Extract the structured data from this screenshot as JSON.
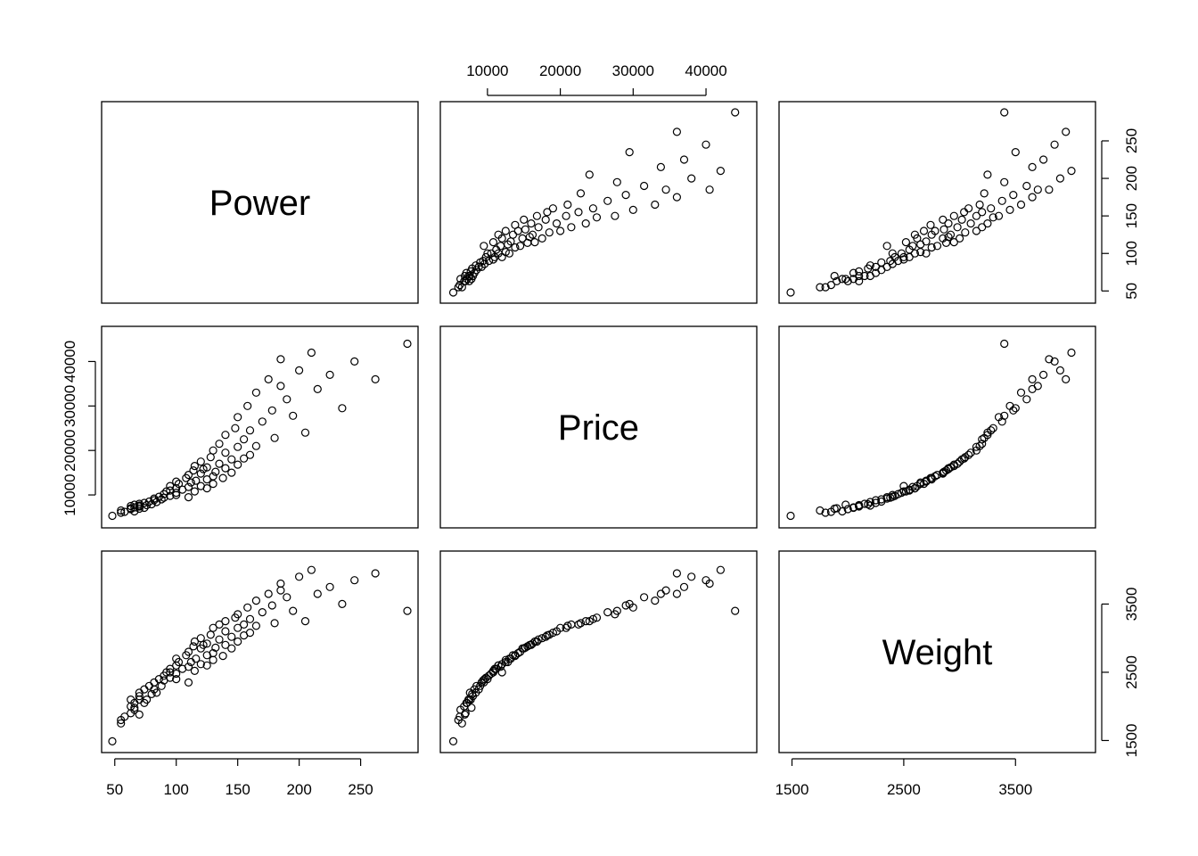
{
  "chart_data": {
    "type": "scatter",
    "subtype": "scatterplot-matrix",
    "variables": [
      "Power",
      "Price",
      "Weight"
    ],
    "axes": {
      "Power": {
        "range": [
          48,
          288
        ],
        "ticks": [
          "50",
          "100",
          "150",
          "200",
          "250"
        ],
        "tick_values": [
          50,
          100,
          150,
          200,
          250
        ]
      },
      "Price": {
        "range": [
          5000,
          45500
        ],
        "ticks": [
          "10000",
          "20000",
          "30000",
          "40000"
        ],
        "tick_values": [
          10000,
          20000,
          30000,
          40000
        ]
      },
      "Weight": {
        "range": [
          1480,
          4120
        ],
        "ticks": [
          "1500",
          "2500",
          "3500"
        ],
        "tick_values": [
          1500,
          2500,
          3500
        ]
      }
    },
    "observations": [
      {
        "power": 48,
        "price": 5300,
        "weight": 1488
      },
      {
        "power": 55,
        "price": 6000,
        "weight": 1800
      },
      {
        "power": 55,
        "price": 6500,
        "weight": 1750
      },
      {
        "power": 58,
        "price": 6200,
        "weight": 1850
      },
      {
        "power": 63,
        "price": 7000,
        "weight": 1900
      },
      {
        "power": 63,
        "price": 6800,
        "weight": 2000
      },
      {
        "power": 63,
        "price": 7500,
        "weight": 2100
      },
      {
        "power": 66,
        "price": 6300,
        "weight": 1950
      },
      {
        "power": 66,
        "price": 7200,
        "weight": 2050
      },
      {
        "power": 66,
        "price": 7800,
        "weight": 1980
      },
      {
        "power": 70,
        "price": 7400,
        "weight": 2100
      },
      {
        "power": 70,
        "price": 8000,
        "weight": 2150
      },
      {
        "power": 70,
        "price": 6900,
        "weight": 1880
      },
      {
        "power": 70,
        "price": 7600,
        "weight": 2200
      },
      {
        "power": 74,
        "price": 7100,
        "weight": 2050
      },
      {
        "power": 74,
        "price": 8200,
        "weight": 2250
      },
      {
        "power": 76,
        "price": 7700,
        "weight": 2100
      },
      {
        "power": 78,
        "price": 8500,
        "weight": 2300
      },
      {
        "power": 80,
        "price": 7900,
        "weight": 2180
      },
      {
        "power": 82,
        "price": 8800,
        "weight": 2250
      },
      {
        "power": 82,
        "price": 9200,
        "weight": 2350
      },
      {
        "power": 84,
        "price": 8400,
        "weight": 2200
      },
      {
        "power": 86,
        "price": 9600,
        "weight": 2400
      },
      {
        "power": 88,
        "price": 9000,
        "weight": 2300
      },
      {
        "power": 90,
        "price": 10200,
        "weight": 2450
      },
      {
        "power": 90,
        "price": 9400,
        "weight": 2380
      },
      {
        "power": 92,
        "price": 10800,
        "weight": 2500
      },
      {
        "power": 95,
        "price": 9800,
        "weight": 2420
      },
      {
        "power": 95,
        "price": 11000,
        "weight": 2550
      },
      {
        "power": 95,
        "price": 12000,
        "weight": 2500
      },
      {
        "power": 100,
        "price": 10500,
        "weight": 2480
      },
      {
        "power": 100,
        "price": 11500,
        "weight": 2600
      },
      {
        "power": 100,
        "price": 13000,
        "weight": 2700
      },
      {
        "power": 100,
        "price": 10000,
        "weight": 2400
      },
      {
        "power": 102,
        "price": 12500,
        "weight": 2650
      },
      {
        "power": 105,
        "price": 11200,
        "weight": 2550
      },
      {
        "power": 108,
        "price": 13800,
        "weight": 2750
      },
      {
        "power": 110,
        "price": 11800,
        "weight": 2580
      },
      {
        "power": 110,
        "price": 14500,
        "weight": 2800
      },
      {
        "power": 110,
        "price": 9500,
        "weight": 2350
      },
      {
        "power": 112,
        "price": 12800,
        "weight": 2650
      },
      {
        "power": 114,
        "price": 15500,
        "weight": 2880
      },
      {
        "power": 115,
        "price": 10800,
        "weight": 2520
      },
      {
        "power": 115,
        "price": 16500,
        "weight": 2950
      },
      {
        "power": 116,
        "price": 13200,
        "weight": 2700
      },
      {
        "power": 120,
        "price": 12000,
        "weight": 2620
      },
      {
        "power": 120,
        "price": 14800,
        "weight": 2850
      },
      {
        "power": 120,
        "price": 17500,
        "weight": 3000
      },
      {
        "power": 122,
        "price": 15800,
        "weight": 2900
      },
      {
        "power": 125,
        "price": 11500,
        "weight": 2600
      },
      {
        "power": 125,
        "price": 13500,
        "weight": 2750
      },
      {
        "power": 125,
        "price": 16200,
        "weight": 2920
      },
      {
        "power": 128,
        "price": 18500,
        "weight": 3050
      },
      {
        "power": 130,
        "price": 14200,
        "weight": 2780
      },
      {
        "power": 130,
        "price": 20000,
        "weight": 3150
      },
      {
        "power": 130,
        "price": 12500,
        "weight": 2680
      },
      {
        "power": 132,
        "price": 15200,
        "weight": 2860
      },
      {
        "power": 135,
        "price": 17000,
        "weight": 2980
      },
      {
        "power": 135,
        "price": 21500,
        "weight": 3200
      },
      {
        "power": 138,
        "price": 13800,
        "weight": 2740
      },
      {
        "power": 140,
        "price": 16000,
        "weight": 2900
      },
      {
        "power": 140,
        "price": 19500,
        "weight": 3100
      },
      {
        "power": 140,
        "price": 23500,
        "weight": 3250
      },
      {
        "power": 145,
        "price": 15000,
        "weight": 2850
      },
      {
        "power": 145,
        "price": 18000,
        "weight": 3020
      },
      {
        "power": 148,
        "price": 25000,
        "weight": 3300
      },
      {
        "power": 150,
        "price": 16800,
        "weight": 2950
      },
      {
        "power": 150,
        "price": 20800,
        "weight": 3150
      },
      {
        "power": 150,
        "price": 27500,
        "weight": 3350
      },
      {
        "power": 155,
        "price": 18200,
        "weight": 3040
      },
      {
        "power": 155,
        "price": 22500,
        "weight": 3200
      },
      {
        "power": 158,
        "price": 30000,
        "weight": 3450
      },
      {
        "power": 160,
        "price": 19000,
        "weight": 3080
      },
      {
        "power": 160,
        "price": 24500,
        "weight": 3280
      },
      {
        "power": 165,
        "price": 33000,
        "weight": 3550
      },
      {
        "power": 165,
        "price": 21000,
        "weight": 3180
      },
      {
        "power": 170,
        "price": 26500,
        "weight": 3380
      },
      {
        "power": 175,
        "price": 36000,
        "weight": 3650
      },
      {
        "power": 178,
        "price": 29000,
        "weight": 3480
      },
      {
        "power": 180,
        "price": 22800,
        "weight": 3220
      },
      {
        "power": 185,
        "price": 34500,
        "weight": 3700
      },
      {
        "power": 185,
        "price": 40500,
        "weight": 3800
      },
      {
        "power": 190,
        "price": 31500,
        "weight": 3600
      },
      {
        "power": 195,
        "price": 27800,
        "weight": 3400
      },
      {
        "power": 200,
        "price": 38000,
        "weight": 3900
      },
      {
        "power": 205,
        "price": 24000,
        "weight": 3250
      },
      {
        "power": 210,
        "price": 42000,
        "weight": 4000
      },
      {
        "power": 215,
        "price": 33800,
        "weight": 3650
      },
      {
        "power": 225,
        "price": 37000,
        "weight": 3750
      },
      {
        "power": 235,
        "price": 29500,
        "weight": 3500
      },
      {
        "power": 245,
        "price": 40000,
        "weight": 3850
      },
      {
        "power": 262,
        "price": 36000,
        "weight": 3950
      },
      {
        "power": 288,
        "price": 44000,
        "weight": 3400
      }
    ]
  }
}
